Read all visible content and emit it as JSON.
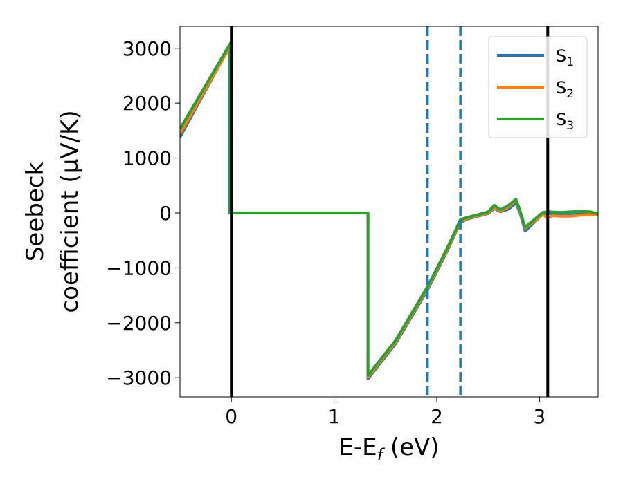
{
  "chart_data": {
    "type": "line",
    "xlabel": "E-E",
    "xlabel_sub": "f",
    "xlabel_unit": " (eV)",
    "ylabel_line1": "Seebeck",
    "ylabel_line2": "coefficient  (μV/K)",
    "xlim": [
      -0.5,
      3.57
    ],
    "ylim": [
      -3350,
      3400
    ],
    "xticks": [
      0,
      1,
      2,
      3
    ],
    "xtick_labels": [
      "0",
      "1",
      "2",
      "3"
    ],
    "yticks": [
      3000,
      2000,
      1000,
      0,
      -1000,
      -2000,
      -3000
    ],
    "ytick_labels": [
      "3000",
      "2000",
      "1000",
      "0",
      "−1000",
      "−2000",
      "−3000"
    ],
    "vlines_solid": [
      0.0,
      3.08
    ],
    "vlines_dashed": [
      1.91,
      2.23
    ],
    "vline_solid_color": "#000000",
    "vline_dashed_color": "#1f77b4",
    "legend_position": "upper-right",
    "series": [
      {
        "name": "S",
        "sub": "1",
        "color": "#1f77b4",
        "points": [
          [
            -0.5,
            1380
          ],
          [
            -0.02,
            3020
          ],
          [
            -0.02,
            0
          ],
          [
            1.33,
            0
          ],
          [
            1.33,
            -3020
          ],
          [
            1.6,
            -2380
          ],
          [
            1.91,
            -1400
          ],
          [
            2.1,
            -700
          ],
          [
            2.23,
            -170
          ],
          [
            2.3,
            -110
          ],
          [
            2.4,
            -60
          ],
          [
            2.5,
            -10
          ],
          [
            2.56,
            80
          ],
          [
            2.62,
            20
          ],
          [
            2.7,
            70
          ],
          [
            2.77,
            180
          ],
          [
            2.81,
            0
          ],
          [
            2.86,
            -330
          ],
          [
            2.95,
            -170
          ],
          [
            3.03,
            -20
          ],
          [
            3.1,
            -10
          ],
          [
            3.2,
            -20
          ],
          [
            3.3,
            -30
          ],
          [
            3.4,
            -20
          ],
          [
            3.57,
            -20
          ]
        ]
      },
      {
        "name": "S",
        "sub": "2",
        "color": "#ff7f0e",
        "points": [
          [
            -0.5,
            1440
          ],
          [
            -0.01,
            3040
          ],
          [
            -0.01,
            0
          ],
          [
            1.33,
            0
          ],
          [
            1.33,
            -2990
          ],
          [
            1.6,
            -2350
          ],
          [
            1.91,
            -1370
          ],
          [
            2.1,
            -680
          ],
          [
            2.23,
            -150
          ],
          [
            2.3,
            -100
          ],
          [
            2.4,
            -50
          ],
          [
            2.5,
            0
          ],
          [
            2.56,
            100
          ],
          [
            2.62,
            30
          ],
          [
            2.7,
            110
          ],
          [
            2.77,
            230
          ],
          [
            2.81,
            20
          ],
          [
            2.86,
            -280
          ],
          [
            2.95,
            -150
          ],
          [
            3.03,
            -30
          ],
          [
            3.08,
            -90
          ],
          [
            3.13,
            -50
          ],
          [
            3.2,
            -60
          ],
          [
            3.3,
            -60
          ],
          [
            3.45,
            -30
          ],
          [
            3.57,
            -30
          ]
        ]
      },
      {
        "name": "S",
        "sub": "3",
        "color": "#2ca02c",
        "points": [
          [
            -0.5,
            1530
          ],
          [
            -0.01,
            3090
          ],
          [
            -0.01,
            0
          ],
          [
            1.33,
            0
          ],
          [
            1.33,
            -2960
          ],
          [
            1.6,
            -2320
          ],
          [
            1.91,
            -1340
          ],
          [
            2.1,
            -650
          ],
          [
            2.23,
            -120
          ],
          [
            2.3,
            -80
          ],
          [
            2.4,
            -30
          ],
          [
            2.5,
            20
          ],
          [
            2.56,
            140
          ],
          [
            2.62,
            60
          ],
          [
            2.7,
            140
          ],
          [
            2.77,
            250
          ],
          [
            2.81,
            40
          ],
          [
            2.86,
            -260
          ],
          [
            2.95,
            -120
          ],
          [
            3.03,
            10
          ],
          [
            3.1,
            20
          ],
          [
            3.2,
            10
          ],
          [
            3.3,
            20
          ],
          [
            3.4,
            30
          ],
          [
            3.5,
            20
          ],
          [
            3.57,
            -20
          ]
        ]
      }
    ]
  }
}
